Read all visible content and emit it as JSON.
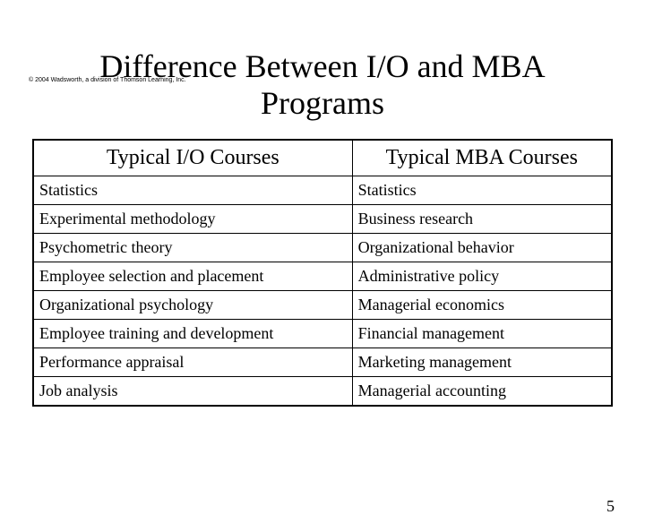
{
  "copyright": "© 2004 Wadsworth, a division of Thomson Learning, Inc.",
  "title": "Difference Between I/O and MBA Programs",
  "table": {
    "headers": [
      "Typical I/O Courses",
      "Typical MBA Courses"
    ],
    "rows": [
      [
        "Statistics",
        "Statistics"
      ],
      [
        "Experimental methodology",
        "Business research"
      ],
      [
        "Psychometric theory",
        "Organizational behavior"
      ],
      [
        "Employee selection and placement",
        "Administrative policy"
      ],
      [
        "Organizational psychology",
        "Managerial economics"
      ],
      [
        "Employee training and development",
        "Financial management"
      ],
      [
        "Performance appraisal",
        "Marketing management"
      ],
      [
        "Job analysis",
        "Managerial accounting"
      ]
    ]
  },
  "page_number": "5"
}
